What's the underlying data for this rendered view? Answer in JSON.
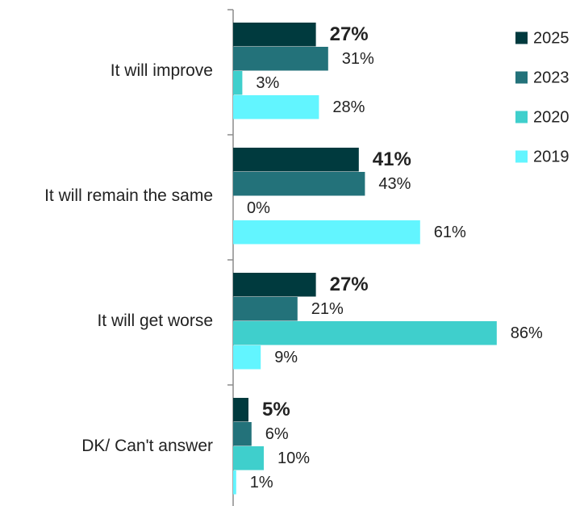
{
  "chart_data": {
    "type": "bar",
    "orientation": "horizontal",
    "categories": [
      "It will improve",
      "It will remain the same",
      "It will get worse",
      "DK/ Can't answer"
    ],
    "series": [
      {
        "name": "2025",
        "color": "#003A3E",
        "values": [
          27,
          41,
          27,
          5
        ],
        "labels": [
          "27%",
          "41%",
          "27%",
          "5%"
        ],
        "label_bold": true
      },
      {
        "name": "2023",
        "color": "#23727A",
        "values": [
          31,
          43,
          21,
          6
        ],
        "labels": [
          "31%",
          "43%",
          "21%",
          "6%"
        ],
        "label_bold": false
      },
      {
        "name": "2020",
        "color": "#3FCFCC",
        "values": [
          3,
          0,
          86,
          10
        ],
        "labels": [
          "3%",
          "0%",
          "86%",
          "10%"
        ],
        "label_bold": false
      },
      {
        "name": "2019",
        "color": "#62F5FF",
        "values": [
          28,
          61,
          9,
          1
        ],
        "labels": [
          "28%",
          "61%",
          "9%",
          "1%"
        ],
        "label_bold": false
      }
    ],
    "xlim": [
      0,
      100
    ],
    "grid": false,
    "legend_position": "right"
  }
}
